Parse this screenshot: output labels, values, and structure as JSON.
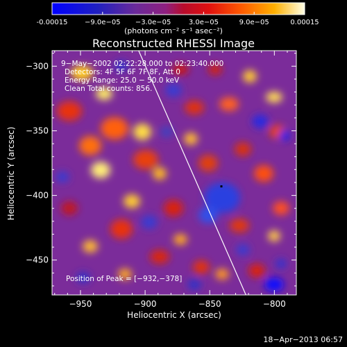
{
  "chart_data": {
    "type": "heatmap",
    "title": "Reconstructed RHESSI Image",
    "xlabel": "Heliocentric X (arcsec)",
    "ylabel": "Heliocentric Y (arcsec)",
    "xlim": [
      -972,
      -783
    ],
    "ylim": [
      -477,
      -288
    ],
    "xticks": [
      -950,
      -900,
      -850,
      -800
    ],
    "yticks": [
      -300,
      -350,
      -400,
      -450
    ],
    "xtick_labels": [
      "−950",
      "−900",
      "−850",
      "−800"
    ],
    "ytick_labels": [
      "−300",
      "−350",
      "−400",
      "−450"
    ],
    "colorbar": {
      "range": [
        -0.00015,
        0.00015
      ],
      "tick_labels": [
        "-0.00015",
        "−9.0e−05",
        "−3.0e−05",
        "3.0e−05",
        "9.0e−05",
        "0.00015"
      ],
      "unit": "(photons cm⁻² s⁻¹ asec⁻²)"
    },
    "annotations": [
      "9−May−2002 02:22:28.000 to 02:23:40.000",
      "Detectors: 4F 5F 6F 7F 8F, Att 0",
      "Energy Range: 25.0 − 50.0 keV",
      "Clean     Total counts: 856."
    ],
    "peak": {
      "label": "Position of Peak = [−932,−378]",
      "x": -932,
      "y": -378
    },
    "limb_line": [
      [
        -905,
        -288
      ],
      [
        -822,
        -477
      ]
    ],
    "marker": {
      "x": -841,
      "y": -393
    }
  },
  "footer": "18−Apr−2013 06:57",
  "colors": {
    "background": "#000000",
    "text": "#ffffff"
  }
}
